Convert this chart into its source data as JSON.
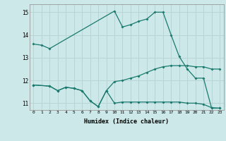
{
  "xlabel": "Humidex (Indice chaleur)",
  "bg_color": "#cce8e8",
  "grid_color": "#b8d4d4",
  "line_color": "#1a7a6e",
  "xlim": [
    -0.5,
    23.5
  ],
  "ylim": [
    10.7,
    15.35
  ],
  "yticks": [
    11,
    12,
    13,
    14,
    15
  ],
  "xticks": [
    0,
    1,
    2,
    3,
    4,
    5,
    6,
    7,
    8,
    9,
    10,
    11,
    12,
    13,
    14,
    15,
    16,
    17,
    18,
    19,
    20,
    21,
    22,
    23
  ],
  "line1_x": [
    0,
    1,
    2,
    10,
    11,
    12,
    13,
    14,
    15,
    16,
    17,
    18,
    19,
    20,
    21,
    22,
    23
  ],
  "line1_y": [
    13.6,
    13.55,
    13.4,
    15.05,
    14.35,
    14.45,
    14.6,
    14.7,
    15.0,
    15.0,
    14.0,
    13.05,
    12.5,
    12.1,
    12.1,
    10.78,
    10.78
  ],
  "line2_x": [
    0,
    2,
    3,
    4,
    5,
    6,
    7,
    8,
    9,
    10,
    11,
    12,
    13,
    14,
    15,
    16,
    17,
    18,
    19,
    20,
    21,
    22,
    23
  ],
  "line2_y": [
    11.8,
    11.75,
    11.55,
    11.7,
    11.65,
    11.55,
    11.1,
    10.85,
    11.55,
    11.95,
    12.0,
    12.1,
    12.2,
    12.35,
    12.5,
    12.6,
    12.65,
    12.65,
    12.65,
    12.6,
    12.6,
    12.5,
    12.5
  ],
  "line3_x": [
    0,
    2,
    3,
    4,
    5,
    6,
    7,
    8,
    9,
    10,
    11,
    12,
    13,
    14,
    15,
    16,
    17,
    18,
    19,
    20,
    21,
    22,
    23
  ],
  "line3_y": [
    11.8,
    11.75,
    11.55,
    11.7,
    11.65,
    11.55,
    11.1,
    10.85,
    11.55,
    11.0,
    11.05,
    11.05,
    11.05,
    11.05,
    11.05,
    11.05,
    11.05,
    11.05,
    11.0,
    11.0,
    10.95,
    10.8,
    10.78
  ]
}
